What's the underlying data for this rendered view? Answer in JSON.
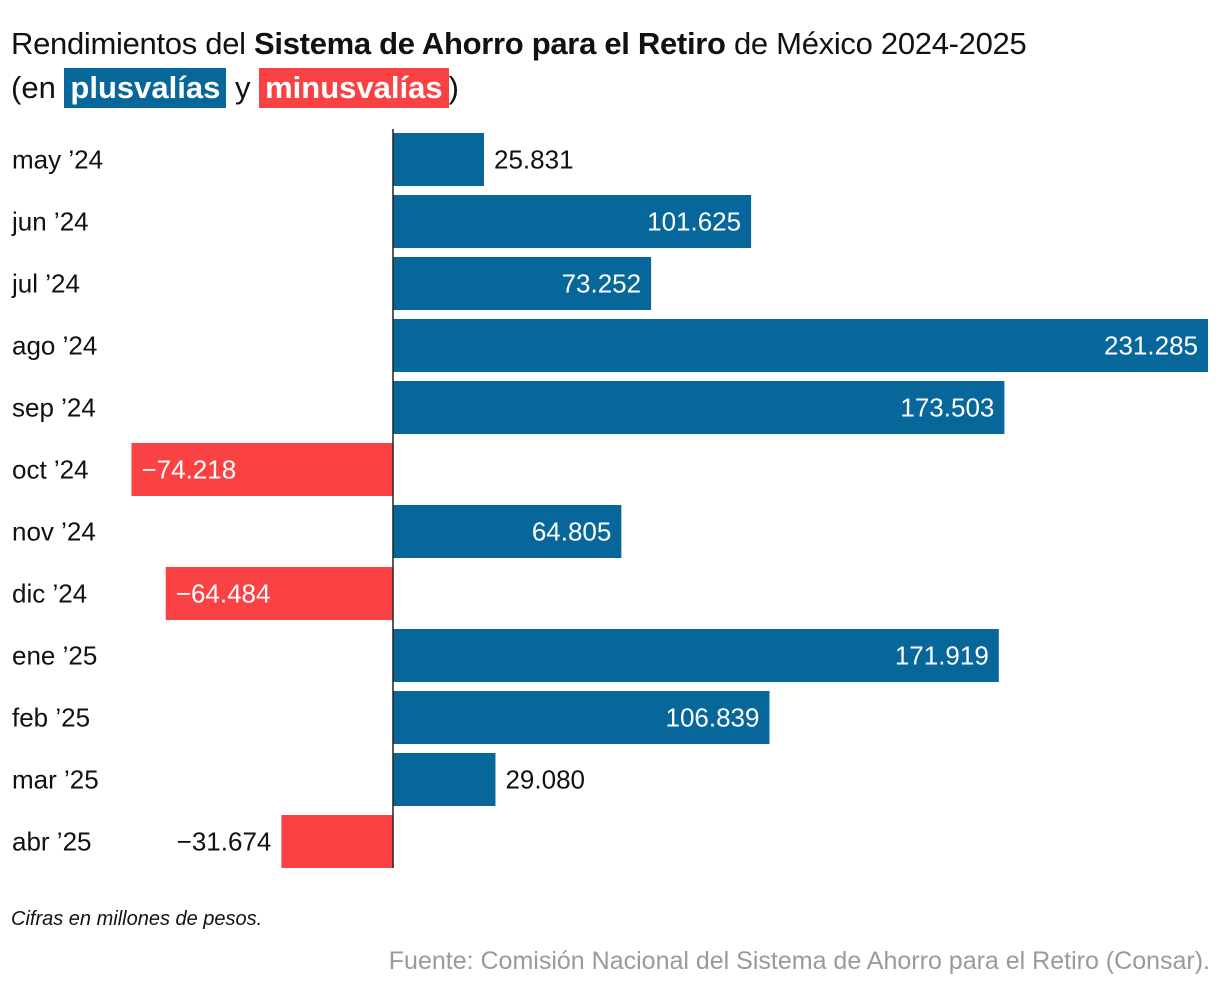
{
  "title": {
    "prefix": "Rendimientos del ",
    "bold": "Sistema de Ahorro para el Retiro",
    "suffix": " de México 2024-2025"
  },
  "subtitle": {
    "open": "(en ",
    "positive_label": "plusvalías",
    "connector": " y ",
    "negative_label": "minusvalías",
    "close": ")"
  },
  "note": "Cifras en millones de pesos.",
  "source": "Fuente: Comisión Nacional del Sistema de Ahorro para el Retiro (Consar).",
  "colors": {
    "positive": "#08679a",
    "negative": "#fa4244",
    "axis": "#222222",
    "text": "#111111",
    "source": "#9a9a9a"
  },
  "chart_data": {
    "type": "bar",
    "orientation": "horizontal",
    "title": "Rendimientos del Sistema de Ahorro para el Retiro de México 2024-2025",
    "xlabel": "",
    "ylabel": "",
    "units": "millones de pesos",
    "categories": [
      "may ’24",
      "jun ’24",
      "jul ’24",
      "ago ’24",
      "sep ’24",
      "oct ’24",
      "nov ’24",
      "dic ’24",
      "ene ’25",
      "feb ’25",
      "mar ’25",
      "abr ’25"
    ],
    "values": [
      25831,
      101625,
      73252,
      231285,
      173503,
      -74218,
      64805,
      -64484,
      171919,
      106839,
      29080,
      -31674
    ],
    "labels": [
      "25.831",
      "101.625",
      "73.252",
      "231.285",
      "173.503",
      "−74.218",
      "64.805",
      "−64.484",
      "171.919",
      "106.839",
      "29.080",
      "−31.674"
    ],
    "xlim": [
      -74218,
      231285
    ],
    "grid": false,
    "legend": "in subtitle"
  }
}
